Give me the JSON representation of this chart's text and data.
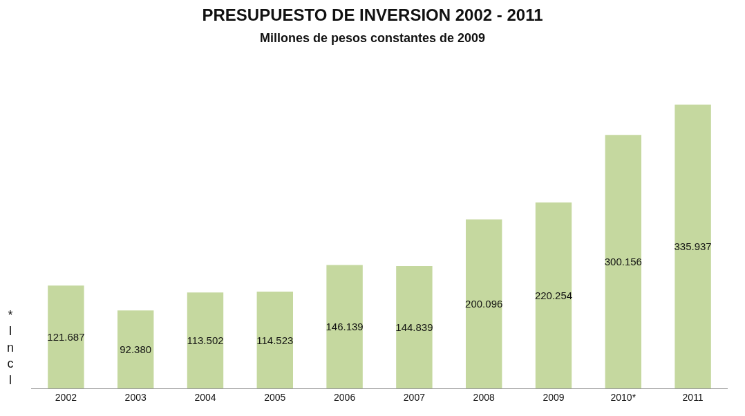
{
  "chart_data": {
    "type": "bar",
    "title": "PRESUPUESTO DE INVERSION 2002 - 2011",
    "subtitle": "Millones de pesos constantes de 2009",
    "categories": [
      "2002",
      "2003",
      "2004",
      "2005",
      "2006",
      "2007",
      "2008",
      "2009",
      "2010*",
      "2011"
    ],
    "values": [
      121687,
      92380,
      113502,
      114523,
      146139,
      144839,
      200096,
      220254,
      300156,
      335937
    ],
    "value_labels": [
      "121.687",
      "92.380",
      "113.502",
      "114.523",
      "146.139",
      "144.839",
      "200.096",
      "220.254",
      "300.156",
      "335.937"
    ],
    "color": "#c5d89f",
    "annotations": [
      "*Incl"
    ],
    "legend": false
  }
}
